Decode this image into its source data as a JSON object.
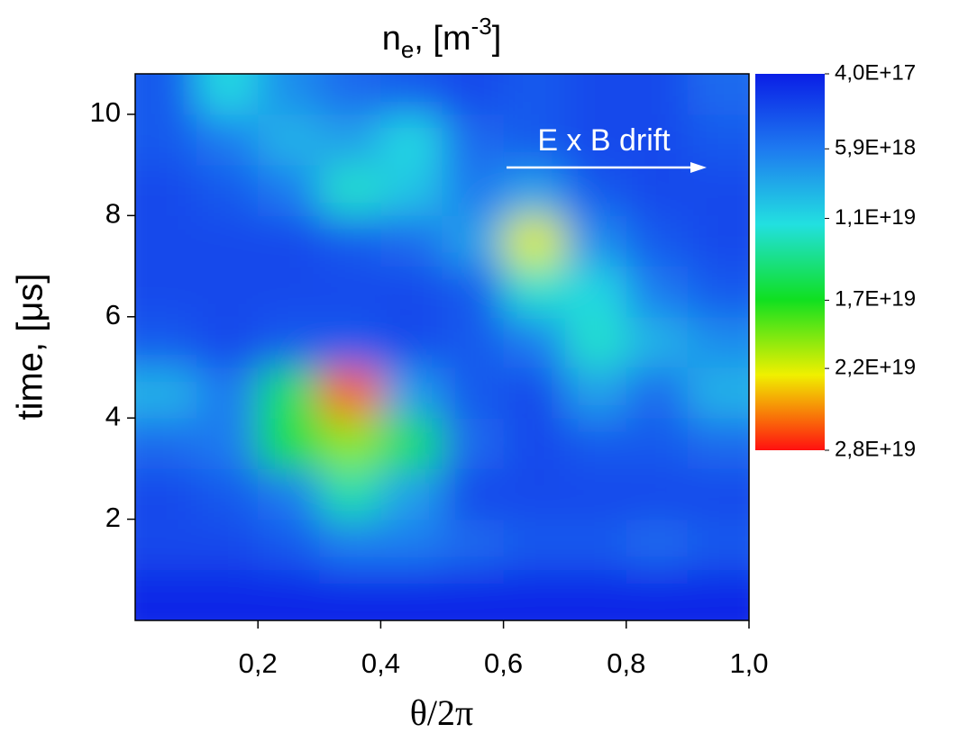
{
  "chart_data": {
    "type": "heatmap",
    "title": {
      "base": "n",
      "sub": "e",
      "mid": ", [m",
      "sup": "-3",
      "end": "]"
    },
    "xlabel": "θ/2π",
    "ylabel": "time, [μs]",
    "annotation": "E x B drift",
    "x": [
      0.05,
      0.15,
      0.25,
      0.35,
      0.45,
      0.55,
      0.65,
      0.75,
      0.85,
      0.95
    ],
    "y": [
      0.5,
      1.5,
      2.5,
      3.5,
      4.5,
      5.5,
      6.5,
      7.5,
      8.5,
      9.5,
      10.5
    ],
    "z": [
      [
        1e+18,
        1e+18,
        1e+18,
        1e+18,
        1e+18,
        1e+18,
        1e+18,
        1e+18,
        1e+18,
        1e+18
      ],
      [
        3e+18,
        3e+18,
        4e+18,
        6e+18,
        6e+18,
        5e+18,
        4e+18,
        4e+18,
        5e+18,
        4e+18
      ],
      [
        3e+18,
        4e+18,
        6e+18,
        1.3e+19,
        8e+18,
        3e+18,
        3e+18,
        3e+18,
        3e+18,
        3e+18
      ],
      [
        5e+18,
        6e+18,
        1.6e+19,
        2e+19,
        1.5e+19,
        5e+18,
        3e+18,
        4e+18,
        4e+18,
        5e+18
      ],
      [
        9e+18,
        6e+18,
        1.5e+19,
        2.6e+19,
        8e+18,
        4e+18,
        3e+18,
        8e+18,
        5e+18,
        9e+18
      ],
      [
        4e+18,
        3e+18,
        4e+18,
        4e+18,
        3e+18,
        4e+18,
        6e+18,
        1.2e+19,
        9e+18,
        7e+18
      ],
      [
        3e+18,
        3e+18,
        3e+18,
        3e+18,
        3e+18,
        4e+18,
        1.2e+19,
        1.1e+19,
        6e+18,
        4e+18
      ],
      [
        3e+18,
        3e+18,
        3e+18,
        4e+18,
        5e+18,
        8e+18,
        2.2e+19,
        7e+18,
        4e+18,
        3e+18
      ],
      [
        3e+18,
        4e+18,
        6e+18,
        1.2e+19,
        1e+19,
        6e+18,
        8e+18,
        4e+18,
        3e+18,
        3e+18
      ],
      [
        4e+18,
        6e+18,
        9e+18,
        8e+18,
        1.1e+19,
        5e+18,
        4e+18,
        3e+18,
        3e+18,
        4e+18
      ],
      [
        4e+18,
        1.1e+19,
        7e+18,
        5e+18,
        4e+18,
        3e+18,
        4e+18,
        3e+18,
        3e+18,
        5e+18
      ]
    ],
    "xlim": [
      0,
      1
    ],
    "xticks": [
      {
        "value": 0.2,
        "label": "0,2"
      },
      {
        "value": 0.4,
        "label": "0,4"
      },
      {
        "value": 0.6,
        "label": "0,6"
      },
      {
        "value": 0.8,
        "label": "0,8"
      },
      {
        "value": 1.0,
        "label": "1,0"
      }
    ],
    "ylim": [
      0,
      10.8
    ],
    "yticks": [
      2,
      4,
      6,
      8,
      10
    ],
    "zlim": [
      4e+17,
      2.8e+19
    ],
    "zticks": [
      {
        "value": 4e+17,
        "label": "4,0E+17"
      },
      {
        "value": 5.9e+18,
        "label": "5,9E+18"
      },
      {
        "value": 1.1e+19,
        "label": "1,1E+19"
      },
      {
        "value": 1.7e+19,
        "label": "1,7E+19"
      },
      {
        "value": 2.2e+19,
        "label": "2,2E+19"
      },
      {
        "value": 2.8e+19,
        "label": "2,8E+19"
      }
    ],
    "colorscale": [
      "#0a1ee6",
      "#1e7af0",
      "#22e0e0",
      "#10e020",
      "#f0f000",
      "#ff1010"
    ]
  }
}
